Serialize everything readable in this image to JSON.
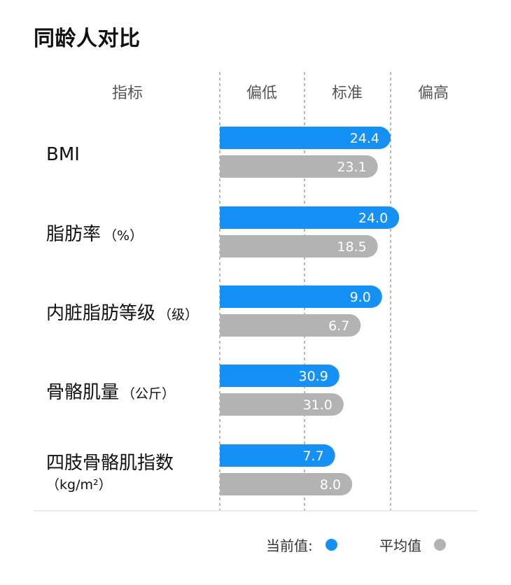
{
  "page": {
    "title": "同龄人对比"
  },
  "legend": {
    "current_label": "当前值:",
    "average_label": "平均值"
  },
  "colors": {
    "current": "#1591f5",
    "average": "#b3b3b3",
    "divider": "#888888",
    "axis_line": "#e5e5e5",
    "header_text": "#555555",
    "row_label_text": "#111111",
    "bar_text": "#ffffff"
  },
  "chart_data": {
    "type": "bar",
    "orientation": "horizontal",
    "header_label": "指标",
    "zones": [
      "偏低",
      "标准",
      "偏高"
    ],
    "categories": [
      {
        "label": "BMI",
        "unit": ""
      },
      {
        "label": "脂肪率",
        "unit": "（%）"
      },
      {
        "label": "内脏脂肪等级",
        "unit": "（级）"
      },
      {
        "label": "骨骼肌量",
        "unit": "（公斤）"
      },
      {
        "label": "四肢骨骼肌指数",
        "unit": "（kg/m²）"
      }
    ],
    "series": [
      {
        "name": "当前值",
        "values": [
          24.4,
          24.0,
          9.0,
          30.9,
          7.7
        ],
        "value_labels": [
          "24.4",
          "24.0",
          "9.0",
          "30.9",
          "7.7"
        ]
      },
      {
        "name": "平均值",
        "values": [
          23.1,
          18.5,
          6.7,
          31.0,
          8.0
        ],
        "value_labels": [
          "23.1",
          "18.5",
          "6.7",
          "31.0",
          "8.0"
        ]
      }
    ],
    "relative_position": {
      "current": [
        2.0,
        2.1,
        1.9,
        1.4,
        1.35
      ],
      "average": [
        1.85,
        1.85,
        1.65,
        1.45,
        1.55
      ]
    },
    "relative_position_note_unused": null,
    "grid": false,
    "legend_position": "bottom-right"
  }
}
